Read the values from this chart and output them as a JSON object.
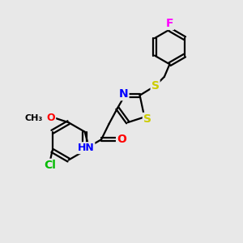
{
  "bg_color": "#e8e8e8",
  "bond_color": "#000000",
  "bond_width": 1.6,
  "atom_colors": {
    "N": "#0000ff",
    "O": "#ff0000",
    "S": "#cccc00",
    "Cl": "#00bb00",
    "F": "#ff00ff",
    "C": "#000000",
    "H": "#606060"
  },
  "font_size": 10,
  "figsize": [
    3.0,
    3.0
  ],
  "dpi": 100
}
